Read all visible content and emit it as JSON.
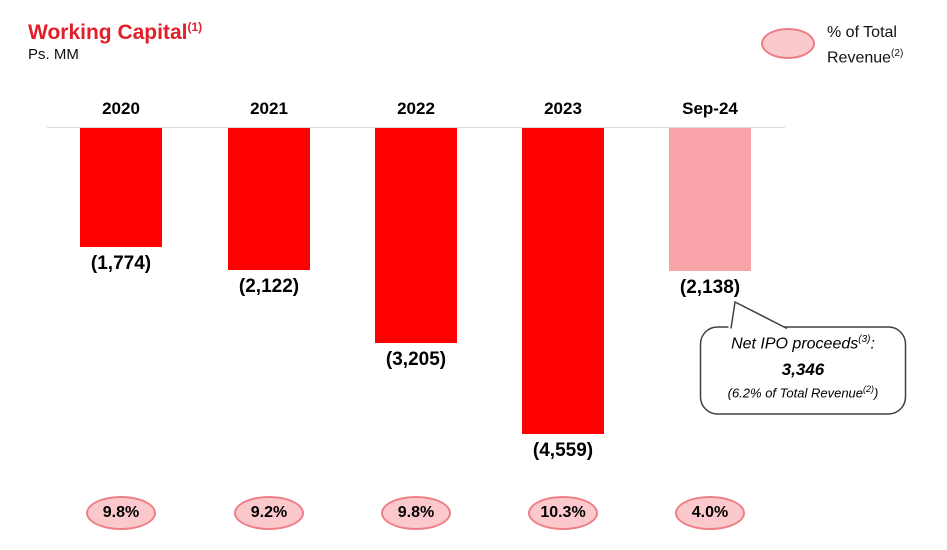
{
  "header": {
    "title": "Working Capital",
    "title_sup": "(1)",
    "subtitle": "Ps. MM"
  },
  "legend": {
    "line1": "% of Total",
    "line2": "Revenue",
    "line2_sup": "(2)"
  },
  "chart_data": {
    "type": "bar",
    "title": "Working Capital (Ps. MM)",
    "categories": [
      "2020",
      "2021",
      "2022",
      "2023",
      "Sep-24"
    ],
    "values": [
      -1774,
      -2122,
      -3205,
      -4559,
      -2138
    ],
    "value_labels": [
      "(1,774)",
      "(2,122)",
      "(3,205)",
      "(4,559)",
      "(2,138)"
    ],
    "pct_of_total_revenue": [
      "9.8%",
      "9.2%",
      "9.8%",
      "10.3%",
      "4.0%"
    ],
    "highlight_index": 4,
    "xlabel": "",
    "ylabel": "Ps. MM",
    "axis": {
      "zero_line_visible": true,
      "bars_extend_downward": true
    },
    "legend_entry": "% of Total Revenue(2)"
  },
  "callout": {
    "line1": "Net IPO proceeds",
    "line1_sup": "(3)",
    "line1_post": ":",
    "value": "3,346",
    "line3_pre": "(6.2% of Total Revenue",
    "line3_sup": "(2)",
    "line3_post": ")"
  },
  "colors": {
    "title_red": "#E31E29",
    "bar_red": "#FF0000",
    "bar_pink": "#F7A3A7",
    "oval_fill": "#FBC9CC",
    "oval_border": "#EE7E86",
    "axis_line": "#D9D9D9",
    "callout_stroke": "#404040"
  }
}
